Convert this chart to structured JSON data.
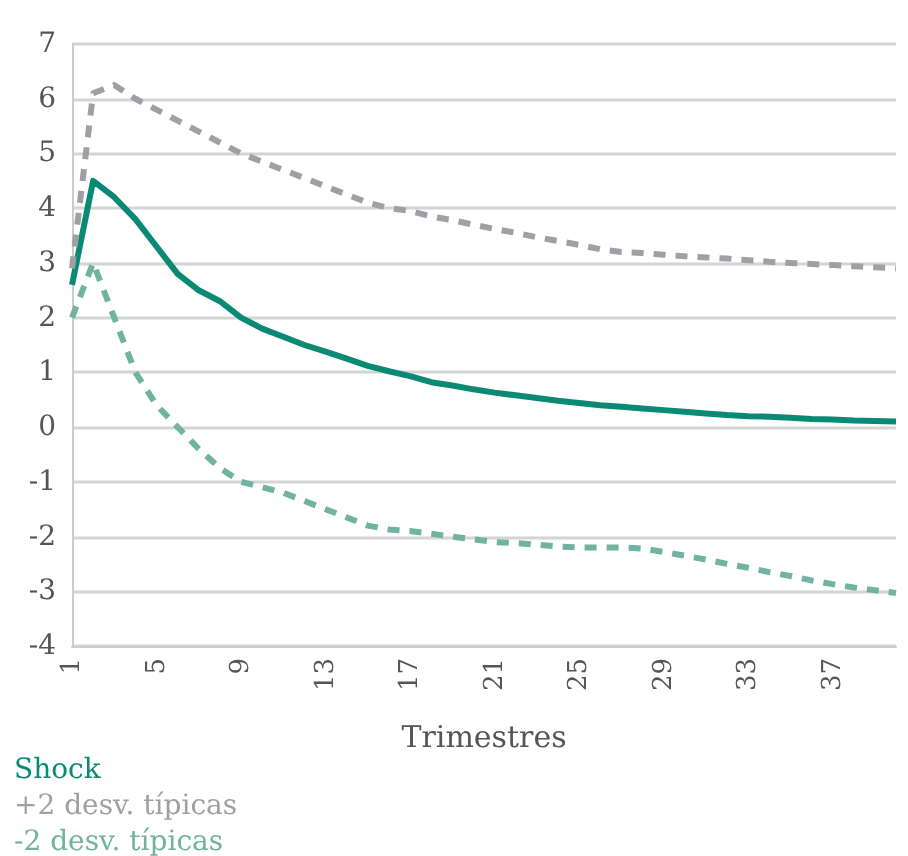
{
  "chart_data": {
    "type": "line",
    "xlabel": "Trimestres",
    "categories": [
      "1",
      null,
      null,
      null,
      "5",
      null,
      null,
      null,
      "9",
      null,
      null,
      null,
      "13",
      null,
      null,
      null,
      "17",
      null,
      null,
      null,
      "21",
      null,
      null,
      null,
      "25",
      null,
      null,
      null,
      "29",
      null,
      null,
      null,
      "33",
      null,
      null,
      null,
      "37",
      null,
      null,
      null
    ],
    "series": [
      {
        "name": "Shock",
        "color": "#0a8a74",
        "line_style": "solid",
        "values": [
          2.6,
          4.5,
          4.2,
          3.8,
          3.3,
          2.8,
          2.5,
          2.3,
          2.0,
          1.8,
          1.65,
          1.5,
          1.38,
          1.25,
          1.12,
          1.02,
          0.93,
          0.82,
          0.76,
          0.69,
          0.63,
          0.58,
          0.53,
          0.48,
          0.44,
          0.4,
          0.37,
          0.34,
          0.31,
          0.28,
          0.25,
          0.22,
          0.2,
          0.19,
          0.17,
          0.15,
          0.14,
          0.12,
          0.11,
          0.1
        ]
      },
      {
        "name": "+2 desv. típicas",
        "color": "#a0a0a4",
        "line_style": "dashed",
        "values": [
          2.9,
          6.1,
          6.25,
          6.0,
          5.8,
          5.6,
          5.4,
          5.2,
          5.0,
          4.85,
          4.7,
          4.55,
          4.4,
          4.25,
          4.1,
          4.0,
          3.95,
          3.85,
          3.78,
          3.7,
          3.62,
          3.55,
          3.47,
          3.4,
          3.33,
          3.25,
          3.2,
          3.18,
          3.15,
          3.12,
          3.1,
          3.08,
          3.05,
          3.02,
          3.0,
          2.98,
          2.96,
          2.94,
          2.92,
          2.9
        ]
      },
      {
        "name": "-2 desv. típicas",
        "color": "#6fb3a0",
        "line_style": "dashed",
        "values": [
          2.0,
          3.0,
          2.0,
          1.0,
          0.4,
          0.0,
          -0.4,
          -0.75,
          -1.0,
          -1.1,
          -1.2,
          -1.35,
          -1.5,
          -1.65,
          -1.8,
          -1.87,
          -1.9,
          -1.95,
          -2.0,
          -2.05,
          -2.1,
          -2.12,
          -2.15,
          -2.18,
          -2.2,
          -2.2,
          -2.2,
          -2.22,
          -2.28,
          -2.35,
          -2.42,
          -2.5,
          -2.57,
          -2.65,
          -2.72,
          -2.8,
          -2.87,
          -2.93,
          -2.98,
          -3.03
        ]
      }
    ],
    "ylim": [
      -4,
      7
    ],
    "yticks": [
      -4,
      -3,
      -2,
      -1,
      0,
      1,
      2,
      3,
      4,
      5,
      6,
      7
    ],
    "grid": "y",
    "legend": "bottom left",
    "marker": "none"
  }
}
